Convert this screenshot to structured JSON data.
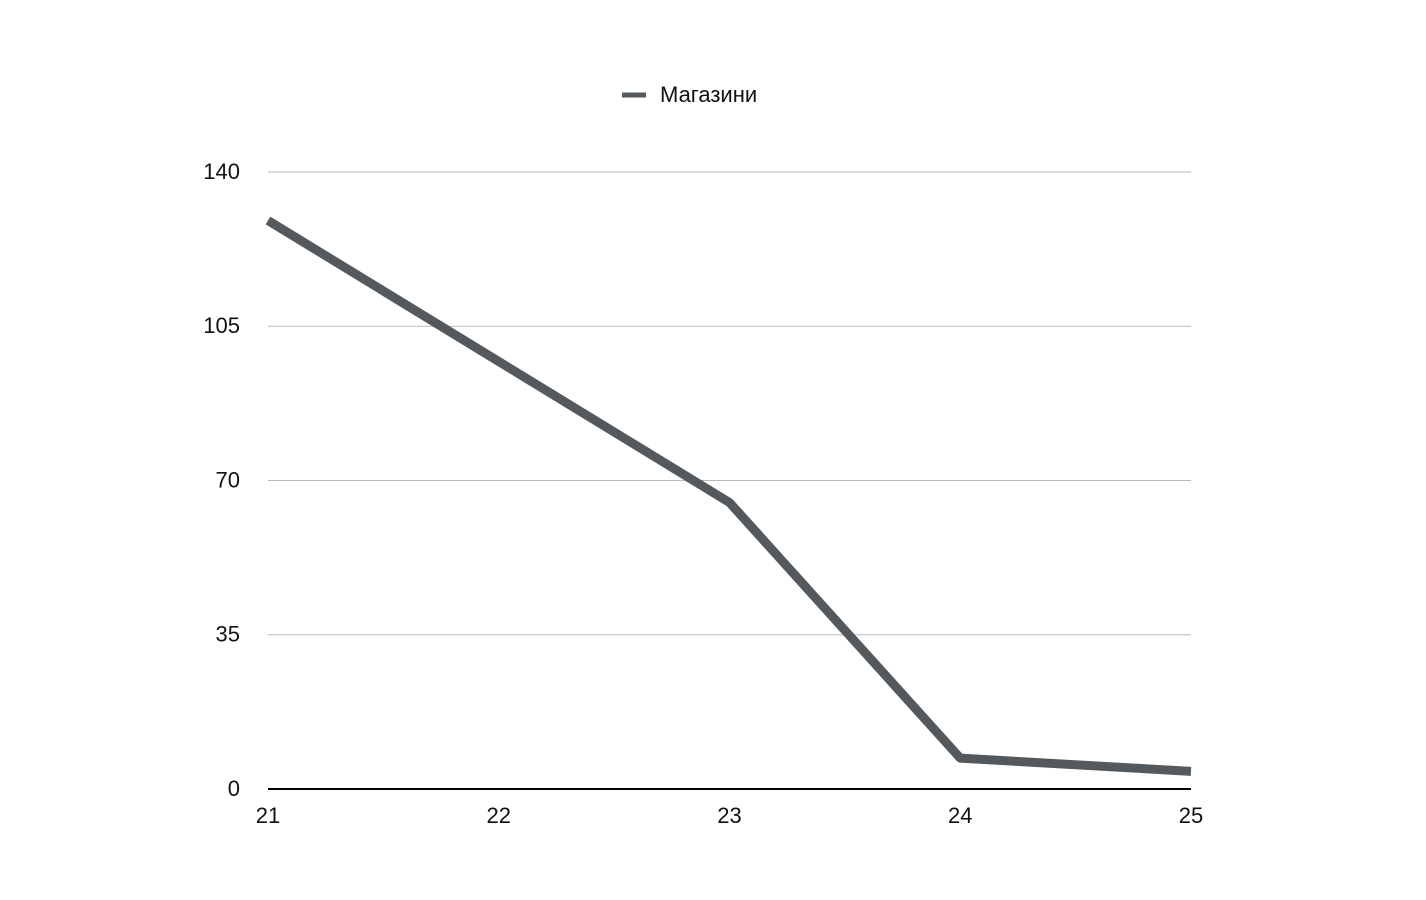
{
  "chart_data": {
    "type": "line",
    "categories": [
      "21",
      "22",
      "23",
      "24",
      "25"
    ],
    "series": [
      {
        "name": "Магазини",
        "color": "#54595e",
        "values": [
          129,
          97,
          65,
          7,
          4
        ]
      }
    ],
    "ylim": [
      0,
      140
    ],
    "yticks": [
      0,
      35,
      70,
      105,
      140
    ],
    "grid": true,
    "legend": "top"
  }
}
